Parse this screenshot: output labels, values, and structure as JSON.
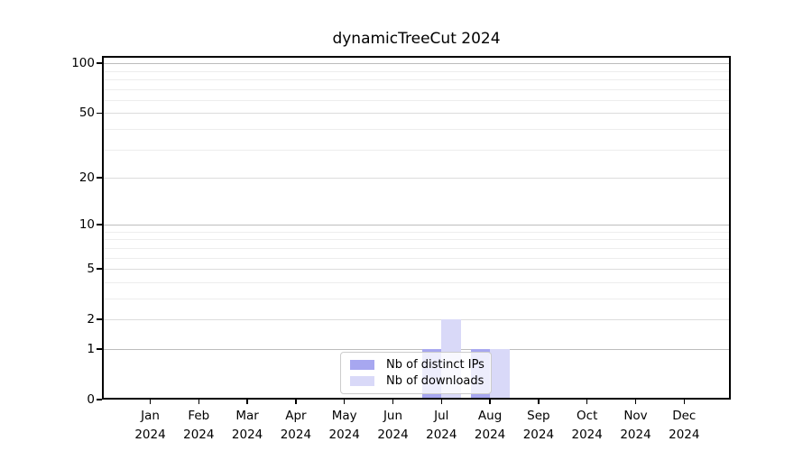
{
  "chart": {
    "title": "dynamicTreeCut 2024"
  },
  "chart_data": {
    "type": "bar",
    "title": "dynamicTreeCut 2024",
    "categories": [
      "Jan",
      "Feb",
      "Mar",
      "Apr",
      "May",
      "Jun",
      "Jul",
      "Aug",
      "Sep",
      "Oct",
      "Nov",
      "Dec"
    ],
    "x_tick_year": "2024",
    "series": [
      {
        "name": "Nb of distinct IPs",
        "color": "#a7a7f0",
        "values": [
          0,
          0,
          0,
          0,
          0,
          0,
          1,
          1,
          0,
          0,
          0,
          0
        ]
      },
      {
        "name": "Nb of downloads",
        "color": "#d9d9f8",
        "values": [
          0,
          0,
          0,
          0,
          0,
          0,
          2,
          1,
          0,
          0,
          0,
          0
        ]
      }
    ],
    "xlabel": "",
    "ylabel": "",
    "yscale": "log1p",
    "y_ticks": [
      0,
      1,
      2,
      5,
      10,
      20,
      50,
      100
    ],
    "y_ticks_minor": [
      3,
      4,
      6,
      7,
      8,
      9,
      30,
      40,
      60,
      70,
      80,
      90
    ],
    "ylim": [
      0,
      110
    ],
    "grid": true,
    "legend_position": "bottom-center",
    "colors": {
      "axis": "#000000",
      "grid_decade": "#bdbdbd",
      "grid_major": "#dcdcdc",
      "grid_minor": "#ededed",
      "legend_border": "#cccccc",
      "legend_background": "rgba(255,255,255,0.8)"
    }
  }
}
